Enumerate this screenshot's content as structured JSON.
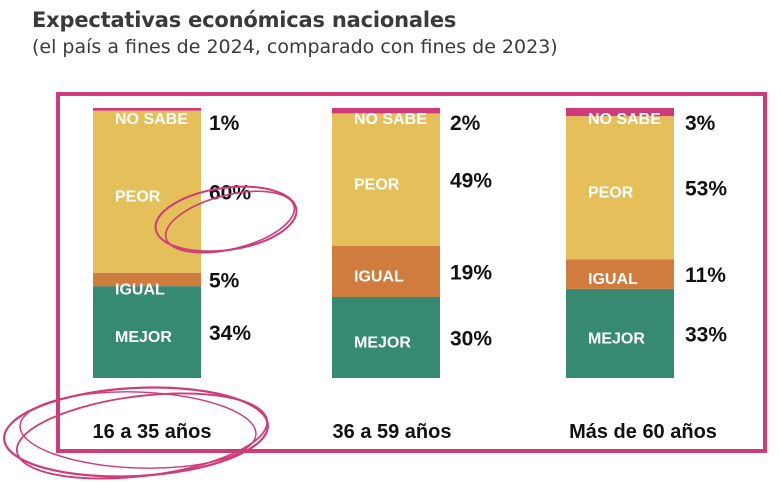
{
  "header": {
    "title": "Expectativas económicas nacionales",
    "subtitle": "(el país a fines de 2024, comparado con fines de 2023)"
  },
  "colors": {
    "frame": "#cf3a78",
    "NO SABE": "#d03a78",
    "PEOR": "#e4bf5a",
    "IGUAL": "#d07c3e",
    "MEJOR": "#368a72",
    "annotation": "#cf3a78"
  },
  "chart_data": {
    "type": "bar",
    "stacked": true,
    "normalized": true,
    "categories": [
      "16 a 35 años",
      "36 a 59 años",
      "Más de 60 años"
    ],
    "series": [
      {
        "name": "MEJOR",
        "values": [
          34,
          30,
          33
        ]
      },
      {
        "name": "IGUAL",
        "values": [
          5,
          19,
          11
        ]
      },
      {
        "name": "PEOR",
        "values": [
          60,
          49,
          53
        ]
      },
      {
        "name": "NO SABE",
        "values": [
          1,
          2,
          3
        ]
      }
    ],
    "value_labels": [
      [
        "34%",
        "30%",
        "33%"
      ],
      [
        "5%",
        "19%",
        "11%"
      ],
      [
        "60%",
        "49%",
        "53%"
      ],
      [
        "1%",
        "2%",
        "3%"
      ]
    ],
    "annotations": [
      "circle around 60% (PEOR, 16 a 35 años)",
      "circle around 16 a 35 años"
    ]
  }
}
